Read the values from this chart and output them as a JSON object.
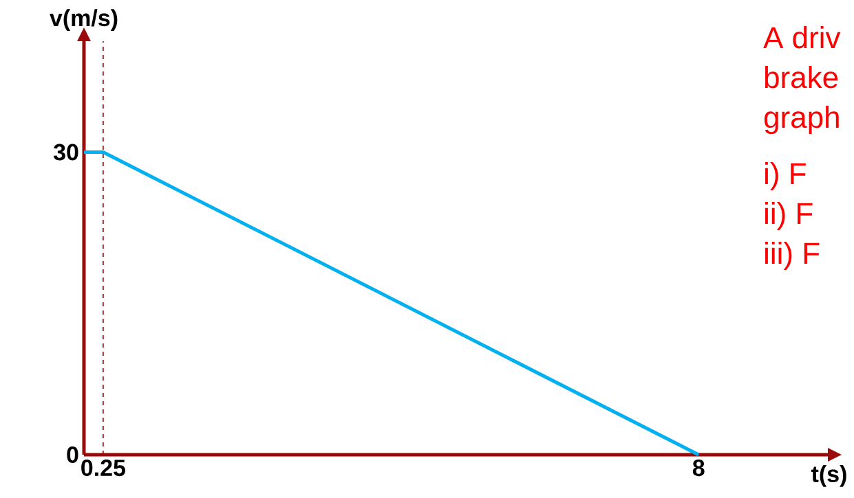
{
  "chart_data": {
    "type": "line",
    "xlabel": "t(s)",
    "ylabel": "v(m/s)",
    "x": [
      0,
      0.25,
      8
    ],
    "series": [
      {
        "color": "#00b0f0",
        "values": [
          30,
          30,
          0
        ]
      }
    ],
    "xlim": [
      0,
      9.7
    ],
    "ylim": [
      0,
      41
    ],
    "xticks": [
      0.25,
      8
    ],
    "yticks": [
      0,
      30
    ],
    "ref_lines": [
      {
        "axis": "x",
        "value": 0.25,
        "color": "#a00000",
        "line_style": "dashed"
      }
    ],
    "annotations": [
      "A driv",
      "brake",
      "graph",
      "i)   F",
      "ii)  F",
      "iii) F"
    ],
    "marker": "none",
    "line_style": "solid",
    "grid": false
  }
}
